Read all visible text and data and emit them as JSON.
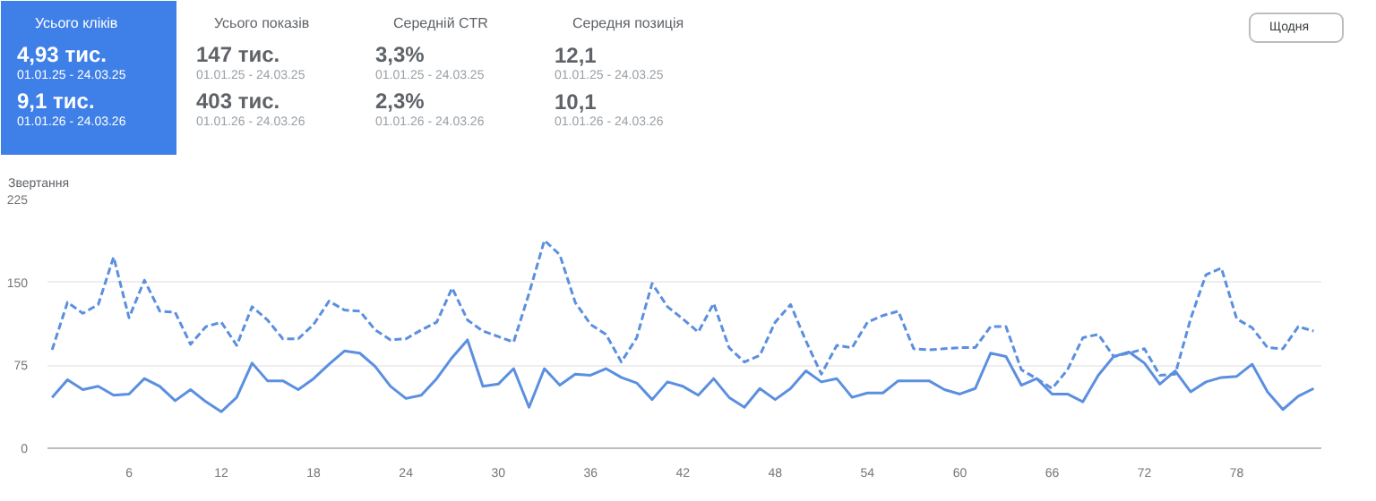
{
  "chart_data": [
    {
      "type": "other",
      "title": "Усього кліків",
      "color": "#3f7fe8",
      "annotations": [
        "4,93 тис.",
        "01.01.25 - 24.03.25",
        "9,1 тис.",
        "01.01.26 - 24.03.26"
      ]
    },
    {
      "type": "other",
      "title": "Усього показів",
      "annotations": [
        "147 тис.",
        "01.01.25 - 24.03.25",
        "403 тис.",
        "01.01.26 - 24.03.26"
      ]
    },
    {
      "type": "other",
      "title": "Середній CTR",
      "annotations": [
        "3,3%",
        "01.01.25 - 24.03.25",
        "2,3%",
        "01.01.26 - 24.03.26"
      ]
    },
    {
      "type": "other",
      "title": "Середня позиція",
      "annotations": [
        "12,1",
        "01.01.25 - 24.03.25",
        "10,1",
        "01.01.26 - 24.03.26"
      ]
    },
    {
      "type": "line",
      "ylabel": "Звертання",
      "annotations": [
        "Щодня"
      ],
      "xlim": [
        0.7,
        83.5
      ],
      "ylim": [
        0,
        225
      ],
      "xticks": [
        6,
        12,
        18,
        24,
        30,
        36,
        42,
        48,
        54,
        60,
        66,
        72,
        78
      ],
      "yticks": [
        0,
        75,
        150,
        225
      ],
      "grid": "y",
      "marker": "none",
      "x": [
        1,
        2,
        3,
        4,
        5,
        6,
        7,
        8,
        9,
        10,
        11,
        12,
        13,
        14,
        15,
        16,
        17,
        18,
        19,
        20,
        21,
        22,
        23,
        24,
        25,
        26,
        27,
        28,
        29,
        30,
        31,
        32,
        33,
        34,
        35,
        36,
        37,
        38,
        39,
        40,
        41,
        42,
        43,
        44,
        45,
        46,
        47,
        48,
        49,
        50,
        51,
        52,
        53,
        54,
        55,
        56,
        57,
        58,
        59,
        60,
        61,
        62,
        63,
        64,
        65,
        66,
        67,
        68,
        69,
        70,
        71,
        72,
        73,
        74,
        75,
        76,
        77,
        78,
        79,
        80,
        81,
        82,
        83
      ],
      "series": [
        {
          "color": "#5b8fe0",
          "line_style": "solid",
          "values": [
            46,
            62,
            53,
            56,
            48,
            49,
            63,
            56,
            43,
            53,
            42,
            33,
            46,
            77,
            61,
            61,
            53,
            63,
            76,
            88,
            86,
            74,
            56,
            45,
            48,
            63,
            82,
            98,
            56,
            58,
            72,
            37,
            72,
            57,
            67,
            66,
            72,
            64,
            59,
            44,
            60,
            56,
            48,
            63,
            46,
            37,
            54,
            44,
            54,
            70,
            60,
            63,
            46,
            50,
            50,
            61,
            61,
            61,
            53,
            49,
            54,
            86,
            83,
            57,
            63,
            49,
            49,
            42,
            66,
            83,
            87,
            77,
            58,
            70,
            51,
            60,
            64,
            65,
            76,
            51,
            35,
            47,
            54
          ]
        },
        {
          "color": "#5b8fe0",
          "line_style": "dashed",
          "values": [
            89,
            132,
            122,
            130,
            173,
            118,
            152,
            124,
            123,
            94,
            110,
            114,
            93,
            128,
            116,
            99,
            99,
            112,
            133,
            125,
            124,
            107,
            98,
            99,
            107,
            114,
            145,
            116,
            106,
            101,
            96,
            140,
            188,
            175,
            132,
            112,
            103,
            78,
            100,
            149,
            128,
            117,
            105,
            131,
            91,
            78,
            84,
            114,
            130,
            97,
            67,
            93,
            91,
            114,
            120,
            124,
            90,
            89,
            90,
            91,
            91,
            110,
            110,
            71,
            63,
            54,
            71,
            100,
            103,
            83,
            86,
            90,
            66,
            67,
            117,
            157,
            163,
            117,
            109,
            91,
            90,
            110,
            106
          ]
        }
      ]
    }
  ]
}
